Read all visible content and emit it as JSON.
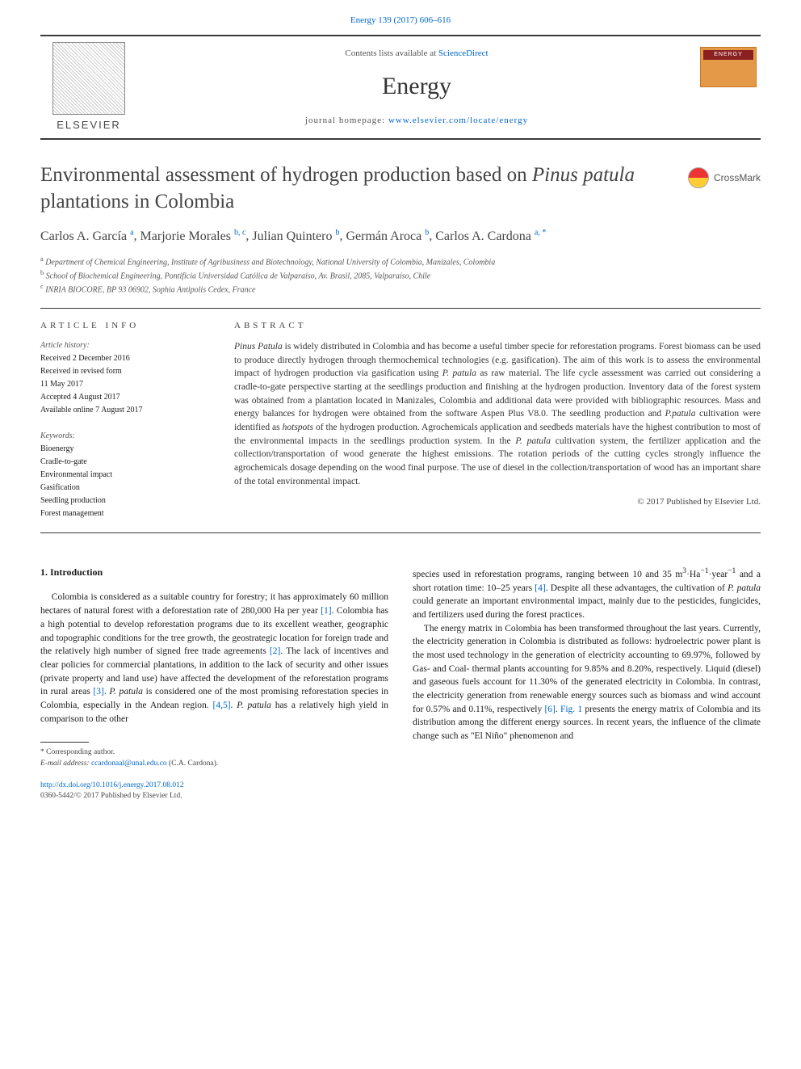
{
  "citation": "Energy 139 (2017) 606–616",
  "header": {
    "publisher": "ELSEVIER",
    "contents_prefix": "Contents lists available at ",
    "contents_link": "ScienceDirect",
    "journal": "Energy",
    "homepage_prefix": "journal homepage: ",
    "homepage_link": "www.elsevier.com/locate/energy",
    "cover_label": "ENERGY"
  },
  "crossmark": "CrossMark",
  "title": {
    "pre": "Environmental assessment of hydrogen production based on ",
    "species": "Pinus patula",
    "post": " plantations in Colombia"
  },
  "authors": [
    {
      "name": "Carlos A. García",
      "refs": "a"
    },
    {
      "name": "Marjorie Morales",
      "refs": "b, c"
    },
    {
      "name": "Julian Quintero",
      "refs": "b"
    },
    {
      "name": "Germán Aroca",
      "refs": "b"
    },
    {
      "name": "Carlos A. Cardona",
      "refs": "a, *"
    }
  ],
  "affiliations": [
    {
      "key": "a",
      "text": "Department of Chemical Engineering, Institute of Agribusiness and Biotechnology, National University of Colombia, Manizales, Colombia"
    },
    {
      "key": "b",
      "text": "School of Biochemical Engineering, Pontificia Universidad Católica de Valparaíso, Av. Brasil, 2085, Valparaíso, Chile"
    },
    {
      "key": "c",
      "text": "INRIA BIOCORE, BP 93 06902, Sophia Antipolis Cedex, France"
    }
  ],
  "info": {
    "heading": "article info",
    "history_label": "Article history:",
    "history": [
      "Received 2 December 2016",
      "Received in revised form",
      "11 May 2017",
      "Accepted 4 August 2017",
      "Available online 7 August 2017"
    ],
    "keywords_label": "Keywords:",
    "keywords": [
      "Bioenergy",
      "Cradle-to-gate",
      "Environmental impact",
      "Gasification",
      "Seedling production",
      "Forest management"
    ]
  },
  "abstract": {
    "heading": "abstract",
    "copyright": "© 2017 Published by Elsevier Ltd."
  },
  "body": {
    "section_heading": "1. Introduction"
  },
  "footnote": {
    "corr": "* Corresponding author.",
    "email_label": "E-mail address:",
    "email": "ccardonaal@unal.edu.co",
    "email_name": "(C.A. Cardona)."
  },
  "doi": {
    "link": "http://dx.doi.org/10.1016/j.energy.2017.08.012",
    "issn": "0360-5442/© 2017 Published by Elsevier Ltd."
  },
  "colors": {
    "link": "#0066cc",
    "text": "#1a1a1a",
    "cover_orange": "#e39947",
    "cover_red": "#8b2020"
  },
  "typography": {
    "title_fontsize": 25,
    "journal_fontsize": 30,
    "body_fontsize": 11.5,
    "info_fontsize": 10
  }
}
